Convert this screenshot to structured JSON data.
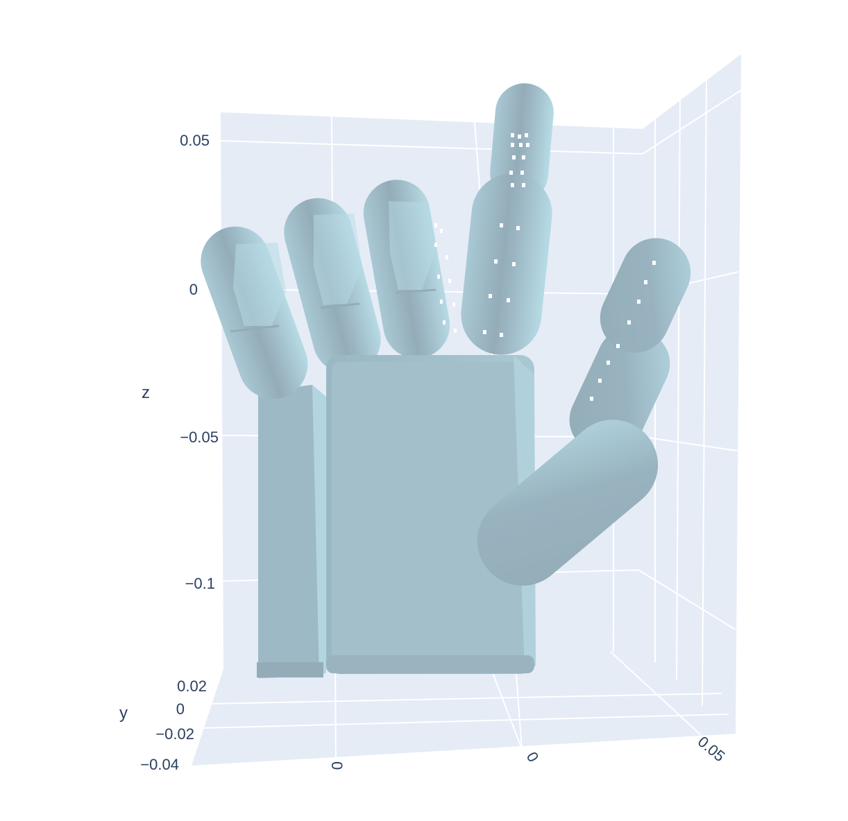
{
  "chart_data": {
    "type": "mesh3d",
    "colors": {
      "pane": "#e5ecf6",
      "grid": "#ffffff",
      "mesh": "#add8e6",
      "mesh_shadow": "#9fbcc7",
      "text": "#2a3f5f"
    },
    "axes": {
      "x": {
        "title": "",
        "ticks": [
          "0",
          "0",
          "0.05"
        ]
      },
      "y": {
        "title": "y",
        "ticks": [
          "0.02",
          "0",
          "−0.02",
          "−0.04"
        ]
      },
      "z": {
        "title": "z",
        "ticks": [
          "0.05",
          "0",
          "−0.05",
          "−0.1"
        ]
      }
    },
    "parts": [
      "palm",
      "palm-side-block",
      "finger-1",
      "finger-2",
      "finger-3",
      "finger-4",
      "thumb"
    ]
  }
}
